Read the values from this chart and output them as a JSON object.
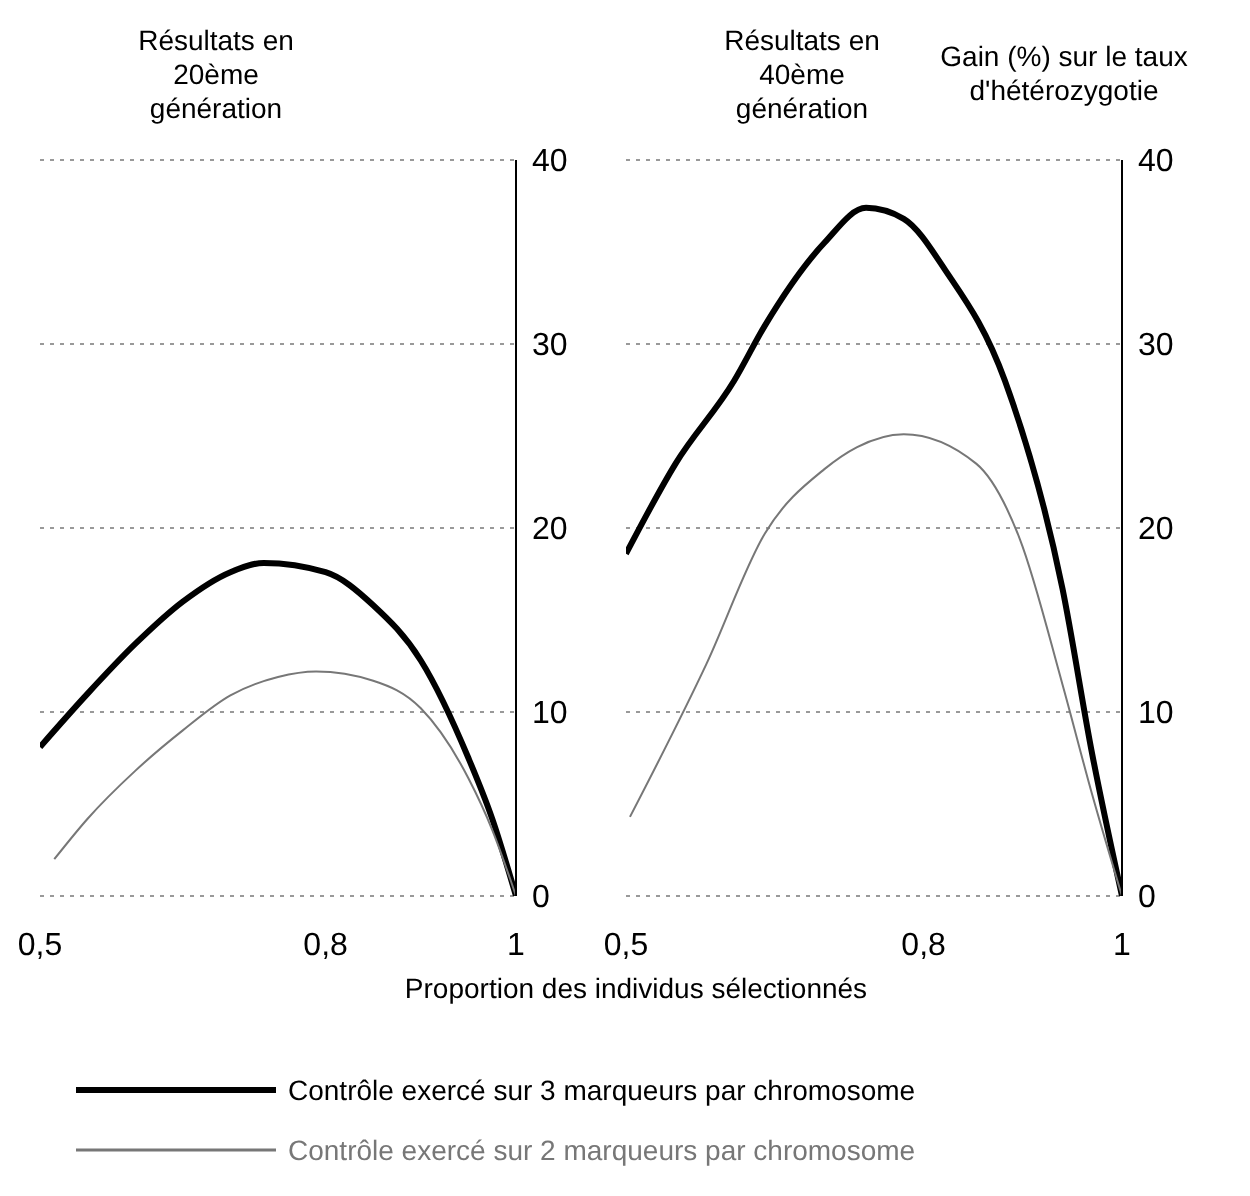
{
  "chart_data": [
    {
      "type": "line",
      "title": "Résultats en 20ème génération",
      "xlabel": "Proportion des individus sélectionnés",
      "xlim": [
        0.5,
        1
      ],
      "xticks": [
        {
          "value": 0.5,
          "label": "0,5"
        },
        {
          "value": 0.8,
          "label": "0,8"
        },
        {
          "value": 1,
          "label": "1"
        }
      ],
      "ylim": [
        0,
        40
      ],
      "yticks": [
        0,
        10,
        20,
        30,
        40
      ],
      "grid": "y",
      "legend": false,
      "series": [
        {
          "color": "#000000",
          "x": [
            0.5,
            0.55,
            0.6,
            0.65,
            0.7,
            0.735,
            0.8,
            0.85,
            0.9,
            0.95,
            0.975,
            1
          ],
          "values": [
            8.1,
            11,
            13.7,
            16,
            17.6,
            18.1,
            17.6,
            15.8,
            12.8,
            7.5,
            4.2,
            0
          ]
        },
        {
          "color": "#777777",
          "x": [
            0.515,
            0.55,
            0.6,
            0.65,
            0.7,
            0.75,
            0.79,
            0.85,
            0.9,
            0.95,
            0.975,
            1
          ],
          "values": [
            2,
            4.2,
            6.8,
            9,
            10.9,
            11.9,
            12.2,
            11.7,
            10.2,
            6.4,
            3.6,
            0
          ]
        }
      ]
    },
    {
      "type": "line",
      "title": "Résultats en 40ème génération",
      "ylabel": "Gain (%) sur le taux d'hétérozygotie",
      "xlim": [
        0.5,
        1
      ],
      "xticks": [
        {
          "value": 0.5,
          "label": "0,5"
        },
        {
          "value": 0.8,
          "label": "0,8"
        },
        {
          "value": 1,
          "label": "1"
        }
      ],
      "ylim": [
        0,
        40
      ],
      "yticks": [
        0,
        10,
        20,
        30,
        40
      ],
      "grid": "y",
      "legend": "bottom",
      "series": [
        {
          "name": "Contrôle exercé sur 3 marqueurs par chromosome",
          "color": "#000000",
          "x": [
            0.5,
            0.55,
            0.609,
            0.64,
            0.7,
            0.742,
            0.78,
            0.822,
            0.882,
            0.94,
            0.97,
            1
          ],
          "values": [
            18.6,
            23.5,
            28,
            31,
            35.5,
            37.4,
            36.8,
            34,
            28,
            16.7,
            7.7,
            0
          ]
        },
        {
          "name": "Contrôle exercé sur 2 marqueurs par chromosome",
          "color": "#777777",
          "x": [
            0.504,
            0.581,
            0.64,
            0.7,
            0.733,
            0.78,
            0.853,
            0.897,
            0.94,
            0.97,
            1
          ],
          "values": [
            4.3,
            12.6,
            19.7,
            23.2,
            24.4,
            25.1,
            23.5,
            19.4,
            11.5,
            5.5,
            0
          ]
        }
      ]
    }
  ]
}
